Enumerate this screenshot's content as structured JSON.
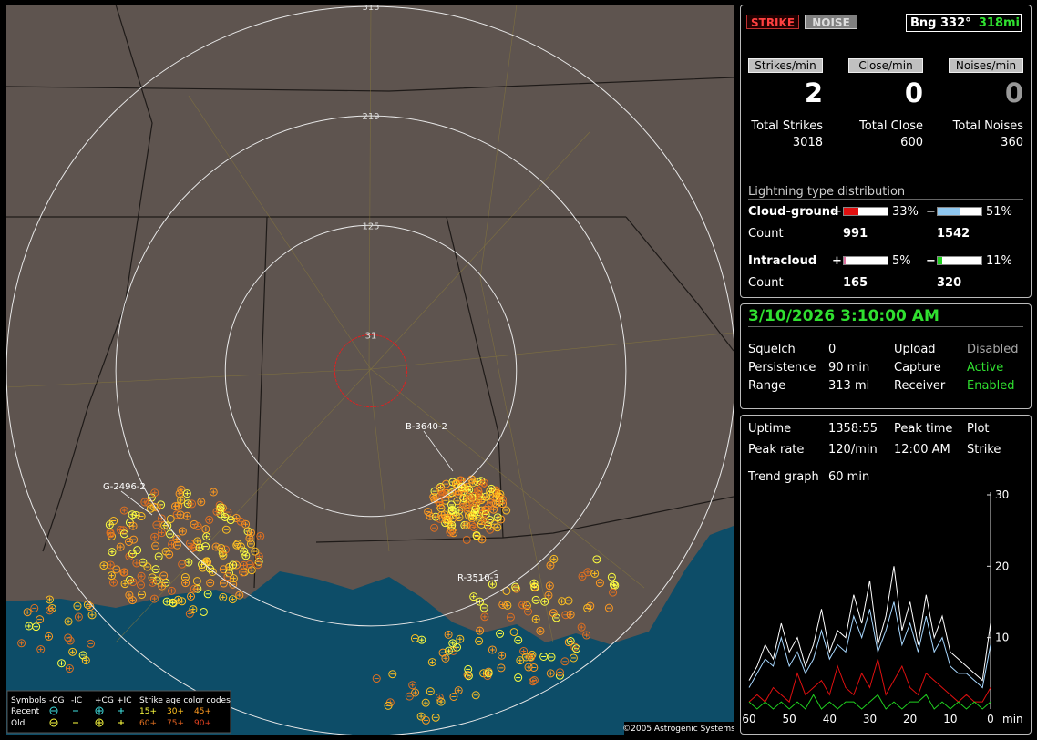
{
  "map": {
    "range_rings": [
      313,
      219,
      125,
      31
    ],
    "cluster_labels": [
      "B-3640-2",
      "G-2496-2",
      "R-3510-3"
    ],
    "legend": {
      "header": [
        "Symbols",
        "-CG",
        "-IC",
        "+CG",
        "+IC"
      ],
      "age_title": "Strike age color codes",
      "rows": [
        {
          "label": "Recent",
          "ages": [
            "15+",
            "30+",
            "45+"
          ]
        },
        {
          "label": "Old",
          "ages": [
            "60+",
            "75+",
            "90+"
          ]
        }
      ]
    },
    "copyright": "©2005 Astrogenic Systems"
  },
  "status_bar": {
    "strike": "STRIKE",
    "noise": "NOISE",
    "bearing": "Bng 332°",
    "distance": "318mi"
  },
  "rates": [
    {
      "label": "Strikes/min",
      "value": 2
    },
    {
      "label": "Close/min",
      "value": 0
    },
    {
      "label": "Noises/min",
      "value": 0
    }
  ],
  "totals": [
    {
      "label": "Total Strikes",
      "value": 3018
    },
    {
      "label": "Total Close",
      "value": 600
    },
    {
      "label": "Total Noises",
      "value": 360
    }
  ],
  "distribution": {
    "title": "Lightning type distribution",
    "count_label": "Count",
    "rows": [
      {
        "label": "Cloud-ground",
        "positive": {
          "sign": "+",
          "percent": 33,
          "percent_label": "33%",
          "count": 991,
          "color": "#e01010"
        },
        "negative": {
          "sign": "−",
          "percent": 51,
          "percent_label": "51%",
          "count": 1542,
          "color": "#90c8f0"
        }
      },
      {
        "label": "Intracloud",
        "positive": {
          "sign": "+",
          "percent": 5,
          "percent_label": "5%",
          "count": 165,
          "color": "#e070a0"
        },
        "negative": {
          "sign": "−",
          "percent": 11,
          "percent_label": "11%",
          "count": 320,
          "color": "#20d020"
        }
      }
    ]
  },
  "datetime": "3/10/2026 3:10:00 AM",
  "settings": [
    [
      "Squelch",
      "0",
      "Upload",
      "Disabled"
    ],
    [
      "Persistence",
      "90 min",
      "Capture",
      "Active"
    ],
    [
      "Range",
      "313 mi",
      "Receiver",
      "Enabled"
    ]
  ],
  "stats": [
    [
      "Uptime",
      "1358:55",
      "Peak time",
      "Plot"
    ],
    [
      "Peak rate",
      "120/min",
      "12:00 AM",
      "Strike"
    ],
    [
      "Trend graph",
      "60 min"
    ]
  ],
  "trend_graph": {
    "x_unit": "min",
    "xlim": [
      60,
      0
    ],
    "ylim": [
      0,
      30
    ],
    "yticks": [
      10,
      20,
      30
    ],
    "xticks": [
      60,
      50,
      40,
      30,
      20,
      10,
      0
    ],
    "x": [
      60,
      58,
      56,
      54,
      52,
      50,
      48,
      46,
      44,
      42,
      40,
      38,
      36,
      34,
      32,
      30,
      28,
      26,
      24,
      22,
      20,
      18,
      16,
      14,
      12,
      10,
      8,
      6,
      4,
      2,
      0
    ],
    "series": [
      {
        "color": "#ffffff",
        "values": [
          4,
          6,
          9,
          7,
          12,
          8,
          10,
          6,
          9,
          14,
          8,
          11,
          10,
          16,
          12,
          18,
          9,
          13,
          20,
          11,
          15,
          9,
          16,
          10,
          13,
          8,
          7,
          6,
          5,
          4,
          12
        ]
      },
      {
        "color": "#a8d8ff",
        "values": [
          3,
          5,
          7,
          6,
          10,
          6,
          8,
          5,
          7,
          11,
          7,
          9,
          8,
          13,
          10,
          14,
          8,
          11,
          15,
          9,
          12,
          8,
          13,
          8,
          10,
          6,
          5,
          5,
          4,
          3,
          9
        ]
      },
      {
        "color": "#e01010",
        "values": [
          1,
          2,
          1,
          3,
          2,
          1,
          5,
          2,
          3,
          4,
          2,
          6,
          3,
          2,
          5,
          3,
          7,
          2,
          4,
          6,
          3,
          2,
          5,
          4,
          3,
          2,
          1,
          2,
          1,
          1,
          3
        ]
      },
      {
        "color": "#20d020",
        "values": [
          1,
          0,
          1,
          0,
          1,
          0,
          1,
          0,
          2,
          0,
          1,
          0,
          1,
          1,
          0,
          1,
          2,
          0,
          1,
          0,
          1,
          1,
          2,
          0,
          1,
          0,
          1,
          0,
          1,
          0,
          1
        ]
      }
    ]
  }
}
